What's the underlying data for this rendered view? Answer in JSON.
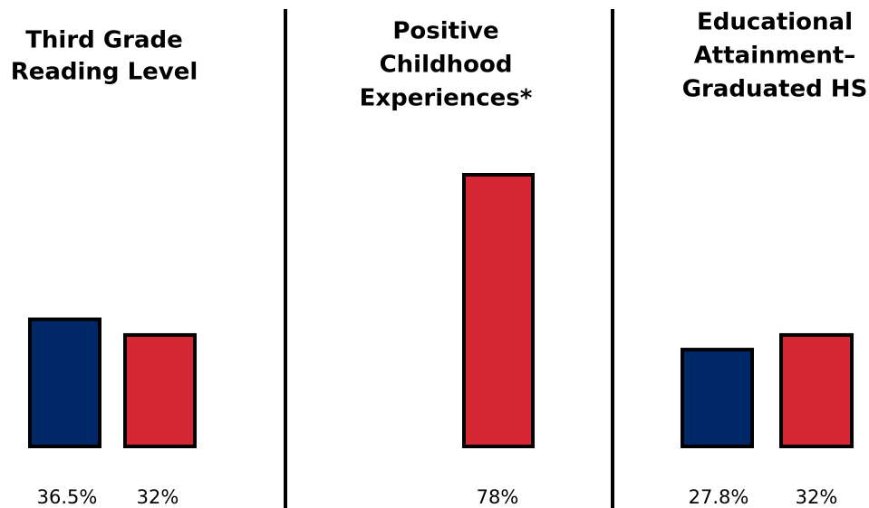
{
  "colors": {
    "blue": "#002868",
    "red": "#D52834",
    "outline": "#000000",
    "background": "#ffffff"
  },
  "chart_data": [
    {
      "type": "bar",
      "title": [
        "Third Grade",
        "Reading Level"
      ],
      "categories": [
        "",
        ""
      ],
      "values": [
        36.5,
        32
      ],
      "value_labels": [
        "36.5%",
        "32%"
      ],
      "bar_colors": [
        "blue",
        "red"
      ],
      "xlabel": "",
      "ylabel": ""
    },
    {
      "type": "bar",
      "title": [
        "Positive",
        "Childhood",
        "Experiences*"
      ],
      "categories": [
        ""
      ],
      "values": [
        78
      ],
      "value_labels": [
        "78%"
      ],
      "bar_colors": [
        "red"
      ],
      "xlabel": "",
      "ylabel": ""
    },
    {
      "type": "bar",
      "title": [
        "Educational",
        "Attainment–",
        "Graduated HS"
      ],
      "categories": [
        "",
        ""
      ],
      "values": [
        27.8,
        32
      ],
      "value_labels": [
        "27.8%",
        "32%"
      ],
      "bar_colors": [
        "blue",
        "red"
      ],
      "xlabel": "",
      "ylabel": ""
    }
  ]
}
